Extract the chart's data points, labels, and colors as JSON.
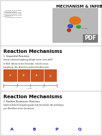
{
  "bg_color": "#e8e8e8",
  "slide1": {
    "title": "MECHANISM & INHIBITORS",
    "names_text": "   1750403001111088\nMukhlash Amali\n   1750403001111088\nRahnaya Muslika Putri\n   1750403001111118\nDafiano S.\n   1750403001111028"
  },
  "slide2": {
    "title": "Reaction Mechanisms",
    "subtitle": "1. Sequential Reactions",
    "desc": "Semua substrat bergabung dengan enzim (situs aktif)\nterlebih dahulu secara berurutan; setelah semua\nbergabung, lalu dihasilkan produk kemudian pula.",
    "bar_color": "#cc5522",
    "bar_labels": [
      "E",
      "B",
      "A",
      "Q",
      "E"
    ]
  },
  "slide3": {
    "title": "Reaction Mechanisms",
    "subtitle": "2. Random Bisubstrate Reactions",
    "desc": "Substrat A dan B bergabung pada saat bersamaan dan produknya\npun dihasilkan secara bersamaan.",
    "labels": [
      "A",
      "B",
      "P",
      "Q"
    ]
  }
}
